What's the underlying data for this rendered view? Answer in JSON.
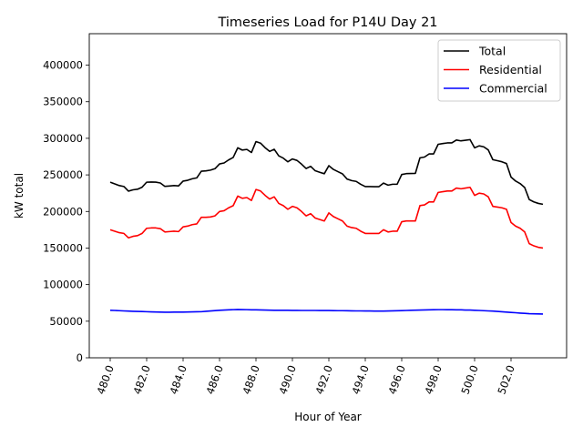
{
  "chart_data": {
    "type": "line",
    "title": "Timeseries Load for P14U   Day 21",
    "xlabel": "Hour of Year",
    "ylabel": "kW total",
    "xlim": [
      478.85,
      505.05
    ],
    "ylim": [
      0,
      443000
    ],
    "x_start": 480,
    "x_step": 0.25,
    "xticks": [
      480,
      482,
      484,
      486,
      488,
      490,
      492,
      494,
      496,
      498,
      500,
      502
    ],
    "xtick_labels": [
      "480.0",
      "482.0",
      "484.0",
      "486.0",
      "488.0",
      "490.0",
      "492.0",
      "494.0",
      "496.0",
      "498.0",
      "500.0",
      "502.0"
    ],
    "yticks": [
      0,
      50000,
      100000,
      150000,
      200000,
      250000,
      300000,
      350000,
      400000
    ],
    "ytick_labels": [
      "0",
      "50000",
      "100000",
      "150000",
      "200000",
      "250000",
      "300000",
      "350000",
      "400000"
    ],
    "grid": false,
    "legend_position": "top-right",
    "series": [
      {
        "name": "Total",
        "color": "#000000",
        "values": [
          240000,
          237700,
          235400,
          234100,
          227800,
          229600,
          230400,
          233200,
          240000,
          240300,
          240100,
          238900,
          234300,
          234800,
          235400,
          234900,
          241500,
          242600,
          244700,
          245900,
          255000,
          255500,
          256500,
          258500,
          265000,
          266300,
          270500,
          273800,
          287000,
          283900,
          284800,
          280600,
          295500,
          293400,
          287200,
          282100,
          285000,
          276000,
          272900,
          267900,
          271800,
          269800,
          264700,
          258700,
          261700,
          255700,
          253600,
          251600,
          262600,
          257500,
          254400,
          251400,
          244300,
          242200,
          241100,
          237100,
          234000,
          234000,
          233900,
          233900,
          238800,
          236000,
          237200,
          237300,
          250500,
          251700,
          251900,
          252100,
          273300,
          274400,
          278600,
          278700,
          291800,
          292800,
          293700,
          293700,
          297600,
          296500,
          297300,
          298200,
          287000,
          289700,
          288400,
          284100,
          270800,
          269400,
          267900,
          265500,
          247000,
          241600,
          238100,
          232700,
          216300,
          213100,
          211000,
          209800
        ]
      },
      {
        "name": "Residential",
        "color": "#ff0000",
        "values": [
          175000,
          173000,
          171000,
          170000,
          164000,
          166000,
          167000,
          170000,
          177000,
          177500,
          177500,
          176500,
          172000,
          172500,
          173000,
          172500,
          179000,
          180000,
          182000,
          183000,
          192000,
          192000,
          192500,
          194000,
          200000,
          201000,
          205000,
          208000,
          221000,
          218000,
          219000,
          215000,
          230000,
          228000,
          222000,
          217000,
          220000,
          211000,
          208000,
          203000,
          207000,
          205000,
          200000,
          194000,
          197000,
          191000,
          189000,
          187000,
          198000,
          193000,
          190000,
          187000,
          180000,
          178000,
          177000,
          173000,
          170000,
          170000,
          170000,
          170000,
          175000,
          172000,
          173000,
          173000,
          186000,
          187000,
          187000,
          187000,
          208000,
          209000,
          213000,
          213000,
          226000,
          227000,
          228000,
          228000,
          232000,
          231000,
          232000,
          233000,
          222000,
          225000,
          224000,
          220000,
          207000,
          206000,
          205000,
          203000,
          185000,
          180000,
          177000,
          172000,
          156000,
          153000,
          151000,
          150000
        ]
      },
      {
        "name": "Commercial",
        "color": "#0000ff",
        "values": [
          65000,
          64700,
          64400,
          64100,
          63800,
          63600,
          63400,
          63200,
          63000,
          62800,
          62600,
          62400,
          62300,
          62300,
          62400,
          62400,
          62500,
          62600,
          62700,
          62900,
          63000,
          63500,
          64000,
          64500,
          65000,
          65300,
          65500,
          65800,
          66000,
          65900,
          65800,
          65600,
          65500,
          65400,
          65200,
          65100,
          65000,
          65000,
          64900,
          64900,
          64800,
          64800,
          64700,
          64700,
          64700,
          64700,
          64600,
          64600,
          64600,
          64500,
          64400,
          64400,
          64300,
          64200,
          64100,
          64100,
          64000,
          64000,
          63900,
          63900,
          63800,
          64000,
          64200,
          64300,
          64500,
          64700,
          64900,
          65100,
          65300,
          65400,
          65600,
          65700,
          65800,
          65800,
          65700,
          65700,
          65600,
          65500,
          65300,
          65200,
          65000,
          64700,
          64400,
          64100,
          63800,
          63400,
          62900,
          62500,
          62000,
          61600,
          61100,
          60700,
          60300,
          60100,
          60000,
          59800
        ]
      }
    ]
  }
}
